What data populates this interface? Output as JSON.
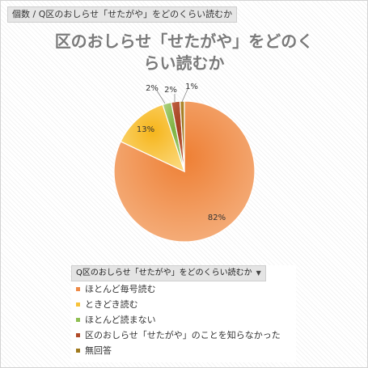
{
  "breadcrumb": {
    "text": "個数 / Q区のおしらせ「せたがや」をどのくらい読むか"
  },
  "chart_data": {
    "type": "pie",
    "title_line1": "区のおしらせ「せたがや」をどのく",
    "title_line2": "らい読むか",
    "slices": [
      {
        "label": "ほとんど毎号読む",
        "value": 82,
        "text": "82%",
        "color": "#ee8a46"
      },
      {
        "label": "ときどき読む",
        "value": 13,
        "text": "13%",
        "color": "#f7c23a"
      },
      {
        "label": "ほとんど読まない",
        "value": 2,
        "text": "2%",
        "color": "#8fbf52"
      },
      {
        "label": "区のおしらせ「せたがや」のことを知らなかった",
        "value": 2,
        "text": "2%",
        "color": "#b04a28"
      },
      {
        "label": "無回答",
        "value": 1,
        "text": "1%",
        "color": "#a07a1e"
      }
    ],
    "legend_title": "Q区のおしらせ「せたがや」をどのくらい読むか",
    "legend_placement": "bottom"
  }
}
